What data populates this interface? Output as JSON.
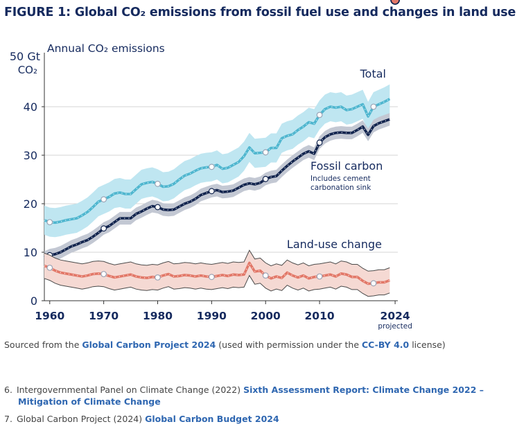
{
  "figure": {
    "title": "FIGURE 1: Global CO₂ emissions from fossil fuel use and changes in land use"
  },
  "chart_data": {
    "type": "line",
    "title": "Annual CO₂ emissions",
    "ylabel_top": "50 Gt",
    "ylabel_unit": "CO₂",
    "ylim": [
      0,
      50
    ],
    "xlim": [
      1959,
      2024.5
    ],
    "y_ticks": [
      "0",
      "10",
      "20",
      "30",
      "40"
    ],
    "y_tick_values": [
      0,
      10,
      20,
      30,
      40
    ],
    "x_ticks": [
      "1960",
      "1970",
      "1980",
      "1990",
      "2000",
      "2010",
      "2024"
    ],
    "x_tick_values": [
      1960,
      1970,
      1980,
      1990,
      2000,
      2010,
      2024
    ],
    "x_note": "projected",
    "grid": true,
    "labels": {
      "total": "Total",
      "fossil": "Fossil carbon",
      "fossil_note1": "Includes cement",
      "fossil_note2": "carbonation sink",
      "luc": "Land-use change"
    },
    "colors": {
      "total": "#4fb6cf",
      "total_band": "#bfe6f1",
      "fossil": "#12244e",
      "fossil_band": "#c3c8d3",
      "luc": "#e27868",
      "luc_band": "#f5d9d3",
      "luc_bound": "#4a4a4a",
      "grid": "#d4d4d4",
      "text": "#152a5e"
    },
    "series": [
      {
        "name": "Total",
        "key": "total",
        "start": 1959,
        "values": [
          16.6,
          16.2,
          16.1,
          16.3,
          16.6,
          16.8,
          17.0,
          17.6,
          18.3,
          19.3,
          20.4,
          20.9,
          21.4,
          22.1,
          22.3,
          22.0,
          22.0,
          23.0,
          24.0,
          24.3,
          24.5,
          24.1,
          23.5,
          23.6,
          24.1,
          25.0,
          25.8,
          26.2,
          26.8,
          27.3,
          27.5,
          27.6,
          28.0,
          27.2,
          27.4,
          28.0,
          28.6,
          29.8,
          31.6,
          30.4,
          30.5,
          30.6,
          31.5,
          31.5,
          33.5,
          34.0,
          34.3,
          35.2,
          35.9,
          36.8,
          36.5,
          38.3,
          39.5,
          40.0,
          39.8,
          40.0,
          39.3,
          39.5,
          40.0,
          40.5,
          38.0,
          40.0,
          40.5,
          41.0,
          41.6
        ],
        "markers": [
          1960,
          1970,
          1980,
          1990,
          2000,
          2010,
          2020,
          2024
        ]
      },
      {
        "name": "Fossil carbon",
        "key": "fossil",
        "start": 1959,
        "values": [
          8.9,
          9.4,
          9.6,
          10.0,
          10.6,
          11.2,
          11.6,
          12.1,
          12.5,
          13.2,
          14.0,
          14.9,
          15.4,
          16.2,
          17.0,
          17.0,
          17.0,
          17.9,
          18.4,
          19.0,
          19.5,
          19.3,
          18.8,
          18.7,
          18.8,
          19.4,
          20.0,
          20.4,
          21.0,
          21.8,
          22.2,
          22.6,
          22.8,
          22.4,
          22.5,
          22.7,
          23.3,
          23.9,
          24.2,
          24.0,
          24.3,
          25.1,
          25.5,
          25.7,
          26.8,
          27.8,
          28.7,
          29.5,
          30.3,
          30.8,
          30.3,
          32.6,
          33.7,
          34.3,
          34.6,
          34.7,
          34.6,
          34.6,
          35.2,
          35.9,
          34.2,
          36.0,
          36.6,
          37.0,
          37.4
        ],
        "markers": [
          1960,
          1970,
          1980,
          1990,
          2000,
          2010,
          2024
        ]
      },
      {
        "name": "Land-use change",
        "key": "luc",
        "start": 1959,
        "values": [
          7.2,
          6.8,
          6.2,
          5.8,
          5.6,
          5.4,
          5.2,
          5.0,
          5.2,
          5.5,
          5.6,
          5.5,
          5.1,
          4.8,
          5.0,
          5.2,
          5.4,
          5.0,
          4.8,
          4.7,
          4.9,
          4.8,
          5.2,
          5.5,
          5.0,
          5.1,
          5.3,
          5.2,
          5.0,
          5.2,
          5.0,
          4.9,
          5.1,
          5.3,
          5.1,
          5.4,
          5.3,
          5.4,
          7.8,
          6.0,
          6.2,
          5.2,
          4.6,
          5.0,
          4.7,
          5.8,
          5.2,
          4.8,
          5.2,
          4.6,
          4.9,
          5.0,
          5.2,
          5.4,
          5.0,
          5.6,
          5.4,
          4.9,
          4.9,
          4.1,
          3.5,
          3.6,
          3.8,
          3.8,
          4.2
        ],
        "markers": [
          1960,
          1970,
          1980,
          1990,
          2000,
          2010,
          2020,
          2024
        ]
      }
    ]
  },
  "source": {
    "prefix": "Sourced from the ",
    "link1": "Global Carbon Project 2024",
    "mid": " (used with permission under the ",
    "link2": "CC-BY 4.0",
    "suffix": " license)"
  },
  "footnotes": [
    {
      "num": "6.",
      "text": "Intergovernmental Panel on Climate Change (2022) ",
      "link_line1": "Sixth Assessment Report: Climate Change 2022 –",
      "link_line2": "Mitigation of Climate Change"
    },
    {
      "num": "7.",
      "text": "Global Carbon Project (2024) ",
      "link": "Global Carbon Budget 2024"
    }
  ]
}
